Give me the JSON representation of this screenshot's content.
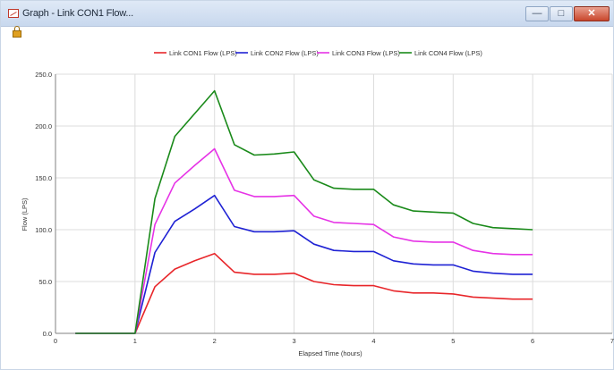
{
  "window": {
    "title": "Graph - Link CON1 Flow...",
    "controls": {
      "minimize": "—",
      "maximize": "□",
      "close": "✕"
    },
    "icons": {
      "app": "graph-icon",
      "lock": "lock-icon"
    }
  },
  "chart_data": {
    "type": "line",
    "title": "",
    "xlabel": "Elapsed Time (hours)",
    "ylabel": "Flow (LPS)",
    "xlim": [
      0,
      7
    ],
    "ylim": [
      0,
      250
    ],
    "xticks": [
      "0",
      "1",
      "2",
      "3",
      "4",
      "5",
      "6",
      "7"
    ],
    "yticks": [
      "0.0",
      "50.0",
      "100.0",
      "150.0",
      "200.0",
      "250.0"
    ],
    "grid": true,
    "legend_position": "top-center",
    "x": [
      0.25,
      0.5,
      0.75,
      1.0,
      1.25,
      1.5,
      1.75,
      2.0,
      2.25,
      2.5,
      2.75,
      3.0,
      3.25,
      3.5,
      3.75,
      4.0,
      4.25,
      4.5,
      4.75,
      5.0,
      5.25,
      5.5,
      5.75,
      6.0
    ],
    "series": [
      {
        "name": "Link CON1 Flow (LPS)",
        "color": "#e8262a",
        "values": [
          0,
          0,
          0,
          0,
          45,
          62,
          70,
          77,
          59,
          57,
          57,
          58,
          50,
          47,
          46,
          46,
          41,
          39,
          39,
          38,
          35,
          34,
          33,
          33
        ]
      },
      {
        "name": "Link CON2 Flow (LPS)",
        "color": "#1f22d4",
        "values": [
          0,
          0,
          0,
          0,
          78,
          108,
          120,
          133,
          103,
          98,
          98,
          99,
          86,
          80,
          79,
          79,
          70,
          67,
          66,
          66,
          60,
          58,
          57,
          57
        ]
      },
      {
        "name": "Link CON3 Flow (LPS)",
        "color": "#e633e6",
        "values": [
          0,
          0,
          0,
          0,
          105,
          145,
          162,
          178,
          138,
          132,
          132,
          133,
          113,
          107,
          106,
          105,
          93,
          89,
          88,
          88,
          80,
          77,
          76,
          76
        ]
      },
      {
        "name": "Link CON4 Flow (LPS)",
        "color": "#1a8a1a",
        "values": [
          0,
          0,
          0,
          0,
          130,
          190,
          212,
          234,
          182,
          172,
          173,
          175,
          148,
          140,
          139,
          139,
          124,
          118,
          117,
          116,
          106,
          102,
          101,
          100
        ]
      }
    ]
  }
}
